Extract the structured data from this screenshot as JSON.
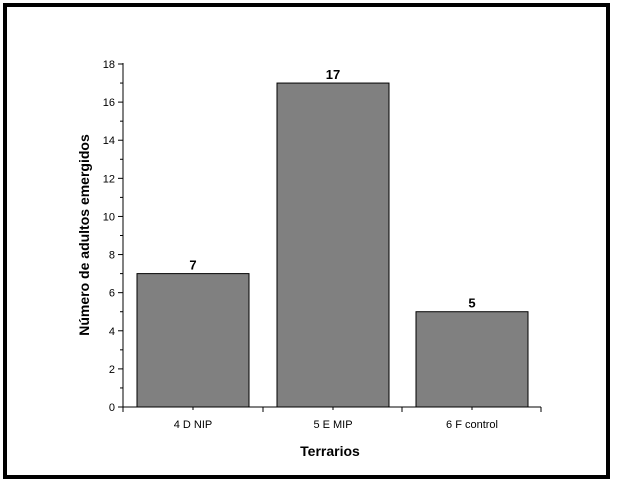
{
  "chart_data": {
    "type": "bar",
    "categories": [
      "4 D NIP",
      "5 E MIP",
      "6 F control"
    ],
    "values": [
      7,
      17,
      5
    ],
    "data_labels": [
      "7",
      "17",
      "5"
    ],
    "title": "",
    "xlabel": "Terrarios",
    "ylabel": "Número de adultos emergidos",
    "ylim": [
      0,
      18
    ],
    "yticks": [
      0,
      2,
      4,
      6,
      8,
      10,
      12,
      14,
      16,
      18
    ],
    "grid": false,
    "legend": "none",
    "bar_color": "#808080",
    "bar_edge_color": "#000000"
  }
}
